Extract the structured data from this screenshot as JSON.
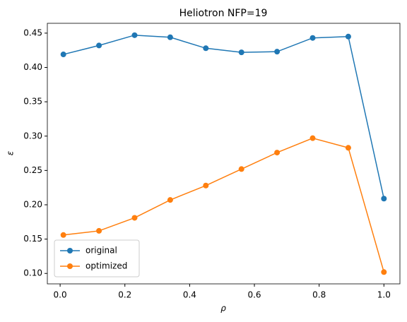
{
  "chart_data": {
    "type": "line",
    "title": "Heliotron NFP=19",
    "x_label": "ρ",
    "y_label": "ε",
    "x": [
      0.01,
      0.12,
      0.23,
      0.34,
      0.45,
      0.56,
      0.67,
      0.78,
      0.89,
      1.0
    ],
    "series": [
      {
        "name": "original",
        "color": "#1f77b4",
        "values": [
          0.419,
          0.432,
          0.447,
          0.444,
          0.428,
          0.422,
          0.423,
          0.443,
          0.445,
          0.209
        ]
      },
      {
        "name": "optimized",
        "color": "#ff7f0e",
        "values": [
          0.156,
          0.162,
          0.181,
          0.207,
          0.228,
          0.252,
          0.276,
          0.297,
          0.283,
          0.102
        ]
      }
    ],
    "xlim": [
      -0.0395,
      1.0495
    ],
    "xticks": [
      {
        "value": 0,
        "label": "0.0"
      },
      0.2,
      0.4,
      0.6,
      0.8,
      {
        "value": 1,
        "label": "1.0"
      }
    ],
    "ylim": [
      0.0848,
      0.4643
    ],
    "yticks": [
      {
        "value": 0.1,
        "label": "0.10"
      },
      0.15,
      {
        "value": 0.2,
        "label": "0.20"
      },
      0.25,
      {
        "value": 0.3,
        "label": "0.30"
      },
      0.35,
      {
        "value": 0.4,
        "label": "0.40"
      },
      0.45
    ],
    "legend": "lower left"
  }
}
